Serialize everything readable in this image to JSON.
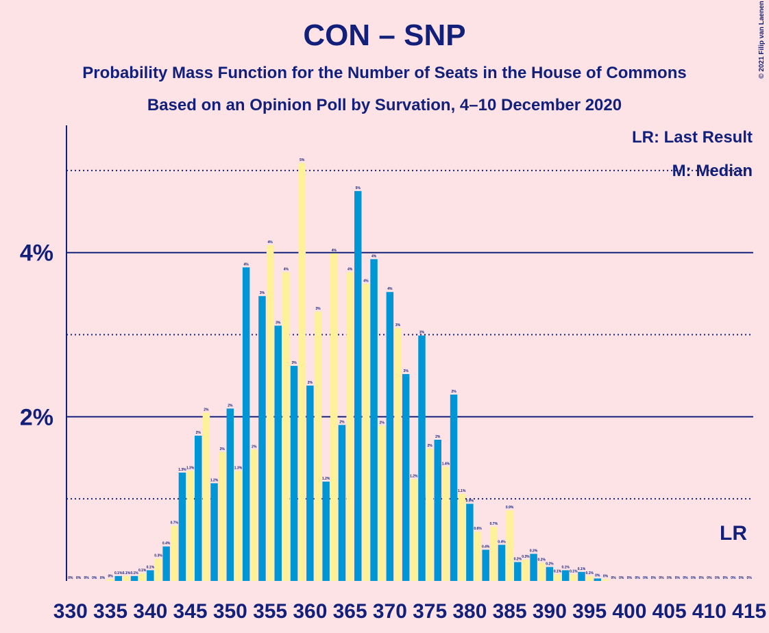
{
  "chart_data": {
    "type": "bar",
    "title": "CON – SNP",
    "subtitle": "Probability Mass Function for the Number of Seats in the House of Commons",
    "subtitle2": "Based on an Opinion Poll by Survation, 4–10 December 2020",
    "copyright": "© 2021 Filip van Laenen",
    "legend_lr": "LR: Last Result",
    "legend_m": "M: Median",
    "lr_label": "LR",
    "bar_colors": [
      "#0096d6",
      "#fff09a"
    ],
    "x": [
      330,
      331,
      332,
      333,
      334,
      335,
      336,
      337,
      338,
      339,
      340,
      341,
      342,
      343,
      344,
      345,
      346,
      347,
      348,
      349,
      350,
      351,
      352,
      353,
      354,
      355,
      356,
      357,
      358,
      359,
      360,
      361,
      362,
      363,
      364,
      365,
      366,
      367,
      368,
      369,
      370,
      371,
      372,
      373,
      374,
      375,
      376,
      377,
      378,
      379,
      380,
      381,
      382,
      383,
      384,
      385,
      386,
      387,
      388,
      389,
      390,
      391,
      392,
      393,
      394,
      395,
      396,
      397,
      398,
      399,
      400,
      401,
      402,
      403,
      404,
      405,
      406,
      407,
      408,
      409,
      410,
      411,
      412,
      413,
      414,
      415
    ],
    "values": [
      0,
      0,
      0,
      0,
      0,
      0.02,
      0.06,
      0.06,
      0.06,
      0.09,
      0.13,
      0.27,
      0.42,
      0.67,
      1.32,
      1.34,
      1.77,
      2.05,
      1.19,
      1.57,
      2.1,
      1.34,
      3.82,
      1.6,
      3.47,
      4.09,
      3.11,
      3.76,
      2.62,
      5.09,
      2.38,
      3.28,
      1.21,
      3.99,
      1.9,
      3.76,
      4.75,
      3.62,
      3.92,
      1.89,
      3.52,
      3.08,
      2.52,
      1.24,
      2.99,
      1.61,
      1.72,
      1.39,
      2.27,
      1.06,
      0.94,
      0.6,
      0.38,
      0.66,
      0.44,
      0.86,
      0.23,
      0.26,
      0.33,
      0.22,
      0.17,
      0.08,
      0.13,
      0.08,
      0.11,
      0.06,
      0.03,
      0.02,
      0,
      0,
      0,
      0,
      0,
      0,
      0,
      0,
      0,
      0,
      0,
      0,
      0,
      0,
      0,
      0,
      0,
      0
    ],
    "value_labels": [
      "0%",
      "0%",
      "0%",
      "0%",
      "0%",
      "0%",
      "0.1%",
      "0.1%",
      "0.1%",
      "0.1%",
      "0.1%",
      "0.3%",
      "0.4%",
      "0.7%",
      "1.3%",
      "1.3%",
      "2%",
      "2%",
      "1.2%",
      "2%",
      "2%",
      "1.3%",
      "4%",
      "2%",
      "3%",
      "4%",
      "3%",
      "4%",
      "3%",
      "5%",
      "2%",
      "3%",
      "1.2%",
      "4%",
      "2%",
      "4%",
      "5%",
      "4%",
      "4%",
      "2%",
      "4%",
      "3%",
      "3%",
      "1.2%",
      "3%",
      "2%",
      "2%",
      "1.4%",
      "2%",
      "1.1%",
      "0.9%",
      "0.6%",
      "0.4%",
      "0.7%",
      "0.4%",
      "0.9%",
      "0.2%",
      "0.3%",
      "0.3%",
      "0.2%",
      "0.2%",
      "0.1%",
      "0.1%",
      "0.1%",
      "0.1%",
      "0.1%",
      "0%",
      "0%",
      "0%",
      "0%",
      "0%",
      "0%",
      "0%",
      "0%",
      "0%",
      "0%",
      "0%",
      "0%",
      "0%",
      "0%",
      "0%",
      "0%",
      "0%",
      "0%",
      "0%",
      "0%"
    ],
    "xlim": [
      329.5,
      415.5
    ],
    "xticks": [
      330,
      335,
      340,
      345,
      350,
      355,
      360,
      365,
      370,
      375,
      380,
      385,
      390,
      395,
      400,
      405,
      410,
      415
    ],
    "ylim": [
      0,
      5.55
    ],
    "yticks": [
      {
        "value": 2,
        "label": "2%"
      },
      {
        "value": 4,
        "label": "4%"
      }
    ],
    "minor_yticks": [
      1,
      3,
      5
    ],
    "grid": true
  }
}
